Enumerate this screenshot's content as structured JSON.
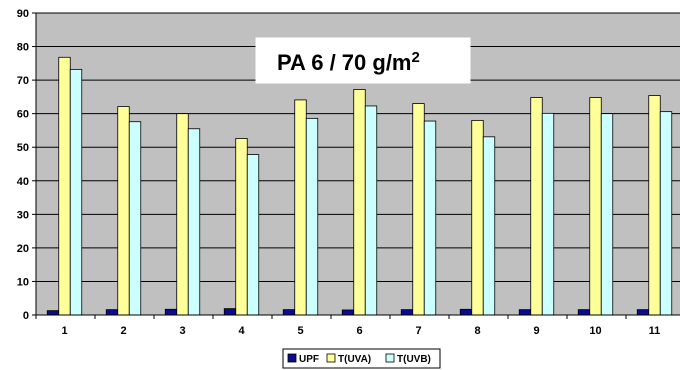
{
  "chart_data": {
    "type": "bar",
    "title": "PA 6 / 70 g/m",
    "title_superscript": "2",
    "categories": [
      "1",
      "2",
      "3",
      "4",
      "5",
      "6",
      "7",
      "8",
      "9",
      "10",
      "11"
    ],
    "series": [
      {
        "name": "UPF",
        "values": [
          1.3,
          1.6,
          1.7,
          1.9,
          1.6,
          1.5,
          1.6,
          1.7,
          1.6,
          1.6,
          1.6
        ],
        "color": "#0b0b8f"
      },
      {
        "name": "T(UVA)",
        "values": [
          76.8,
          62.1,
          60.0,
          52.6,
          64.1,
          67.2,
          63.0,
          58.0,
          64.8,
          64.8,
          65.4
        ],
        "color": "#ffff99"
      },
      {
        "name": "T(UVB)",
        "values": [
          73.2,
          57.6,
          55.5,
          47.8,
          58.6,
          62.3,
          57.8,
          53.1,
          60.1,
          60.0,
          60.6
        ],
        "color": "#ccffff"
      }
    ],
    "y_ticks": [
      "0",
      "10",
      "20",
      "30",
      "40",
      "50",
      "60",
      "70",
      "80",
      "90"
    ],
    "ylim": [
      0,
      90
    ],
    "grid": true,
    "plot_background": "#c0c0c0",
    "legend_position": "bottom"
  }
}
